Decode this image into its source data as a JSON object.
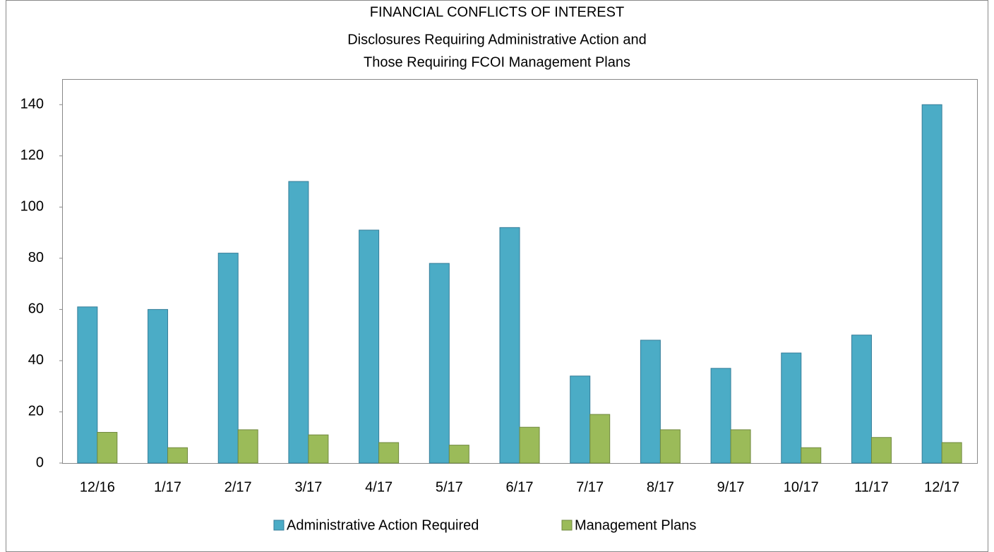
{
  "chart_data": {
    "type": "bar",
    "title": [
      "FINANCIAL CONFLICTS OF INTEREST",
      "Disclosures Requiring Administrative Action and",
      "Those Requiring FCOI Management Plans"
    ],
    "categories": [
      "12/16",
      "1/17",
      "2/17",
      "3/17",
      "4/17",
      "5/17",
      "6/17",
      "7/17",
      "8/17",
      "9/17",
      "10/17",
      "11/17",
      "12/17"
    ],
    "series": [
      {
        "name": "Administrative Action Required",
        "color": "#4bacc6",
        "values": [
          61,
          60,
          82,
          110,
          91,
          78,
          92,
          34,
          48,
          37,
          43,
          50,
          140
        ]
      },
      {
        "name": "Management Plans",
        "color": "#9bbb59",
        "values": [
          12,
          6,
          13,
          11,
          8,
          7,
          14,
          19,
          13,
          13,
          6,
          10,
          8
        ]
      }
    ],
    "ylim": [
      0,
      150
    ],
    "yticks": [
      0,
      20,
      40,
      60,
      80,
      100,
      120,
      140
    ],
    "grid": false,
    "legend": "bottom"
  }
}
